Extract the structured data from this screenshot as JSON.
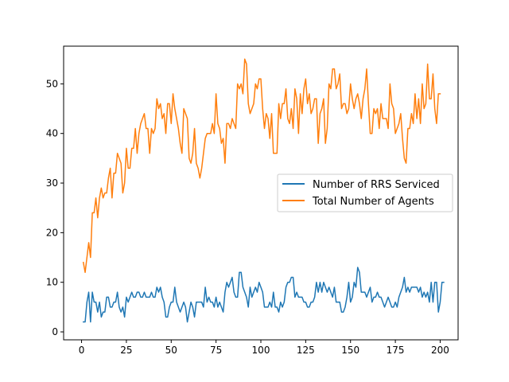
{
  "chart_data": {
    "type": "line",
    "xlim": [
      -10,
      210
    ],
    "ylim": [
      -1.6,
      57.6
    ],
    "x_ticks": [
      0,
      25,
      50,
      75,
      100,
      125,
      150,
      175,
      200
    ],
    "y_ticks": [
      0,
      10,
      20,
      30,
      40,
      50
    ],
    "grid": false,
    "legend_position": "center-right",
    "series": [
      {
        "name": "Number of RRS Serviced",
        "color": "#1f77b4",
        "x_start": 1,
        "values": [
          2,
          2,
          6,
          8,
          2,
          8,
          6,
          6,
          4,
          6,
          3,
          4,
          4,
          7,
          7,
          5,
          5,
          6,
          6,
          8,
          5,
          4,
          5,
          3,
          7,
          6,
          7,
          8,
          7,
          7,
          8,
          8,
          7,
          7,
          8,
          7,
          7,
          7,
          8,
          7,
          7,
          9,
          8,
          9,
          7,
          6,
          3,
          3,
          5,
          6,
          6,
          9,
          6,
          5,
          4,
          5,
          6,
          5,
          2,
          4,
          6,
          5,
          3,
          6,
          6,
          6,
          6,
          5,
          9,
          6,
          7,
          6,
          6,
          5,
          7,
          5,
          6,
          5,
          4,
          8,
          10,
          9,
          10,
          11,
          8,
          7,
          7,
          12,
          12,
          9,
          8,
          7,
          5,
          9,
          7,
          8,
          9,
          8,
          10,
          9,
          8,
          5,
          5,
          5,
          6,
          5,
          8,
          5,
          5,
          4,
          6,
          5,
          6,
          9,
          10,
          10,
          11,
          11,
          7,
          8,
          7,
          7,
          7,
          6,
          6,
          5,
          5,
          6,
          6,
          7,
          10,
          8,
          10,
          8,
          10,
          9,
          8,
          9,
          8,
          7,
          9,
          6,
          6,
          6,
          4,
          4,
          5,
          7,
          10,
          6,
          7,
          10,
          9,
          13,
          12,
          8,
          8,
          8,
          7,
          8,
          9,
          6,
          7,
          7,
          8,
          7,
          7,
          6,
          5,
          6,
          7,
          6,
          5,
          5,
          6,
          5,
          7,
          8,
          9,
          11,
          8,
          9,
          8,
          9,
          9,
          9,
          9,
          8,
          9,
          7,
          8,
          7,
          8,
          6,
          10,
          6,
          10,
          10,
          4,
          6,
          10,
          10
        ]
      },
      {
        "name": "Total Number of Agents",
        "color": "#ff7f0e",
        "x_start": 1,
        "values": [
          14,
          12,
          15,
          18,
          15,
          24,
          24,
          27,
          23,
          27,
          29,
          27,
          28,
          28,
          31,
          33,
          27,
          32,
          32,
          36,
          35,
          34,
          28,
          30,
          37,
          33,
          33,
          37,
          37,
          41,
          36,
          40,
          42,
          43,
          44,
          41,
          41,
          36,
          41,
          40,
          41,
          47,
          45,
          46,
          43,
          44,
          40,
          46,
          46,
          42,
          48,
          45,
          43,
          41,
          38,
          36,
          45,
          44,
          43,
          35,
          34,
          36,
          41,
          34,
          33,
          31,
          33,
          36,
          39,
          40,
          40,
          40,
          42,
          40,
          48,
          42,
          41,
          38,
          39,
          34,
          42,
          42,
          41,
          43,
          42,
          41,
          50,
          49,
          50,
          48,
          55,
          54,
          46,
          44,
          45,
          46,
          50,
          49,
          51,
          51,
          45,
          41,
          44,
          43,
          39,
          44,
          36,
          36,
          36,
          46,
          43,
          46,
          46,
          49,
          43,
          42,
          45,
          41,
          49,
          47,
          40,
          48,
          44,
          49,
          51,
          46,
          48,
          44,
          45,
          47,
          47,
          38,
          44,
          45,
          47,
          38,
          41,
          50,
          49,
          53,
          53,
          49,
          50,
          52,
          45,
          46,
          46,
          44,
          45,
          50,
          47,
          45,
          47,
          48,
          46,
          43,
          47,
          49,
          53,
          46,
          40,
          40,
          45,
          44,
          45,
          41,
          46,
          43,
          43,
          43,
          41,
          50,
          46,
          45,
          40,
          41,
          42,
          44,
          39,
          35,
          34,
          41,
          41,
          44,
          42,
          48,
          43,
          47,
          42,
          50,
          45,
          46,
          54,
          47,
          47,
          52,
          45,
          42,
          48,
          48
        ]
      }
    ]
  }
}
